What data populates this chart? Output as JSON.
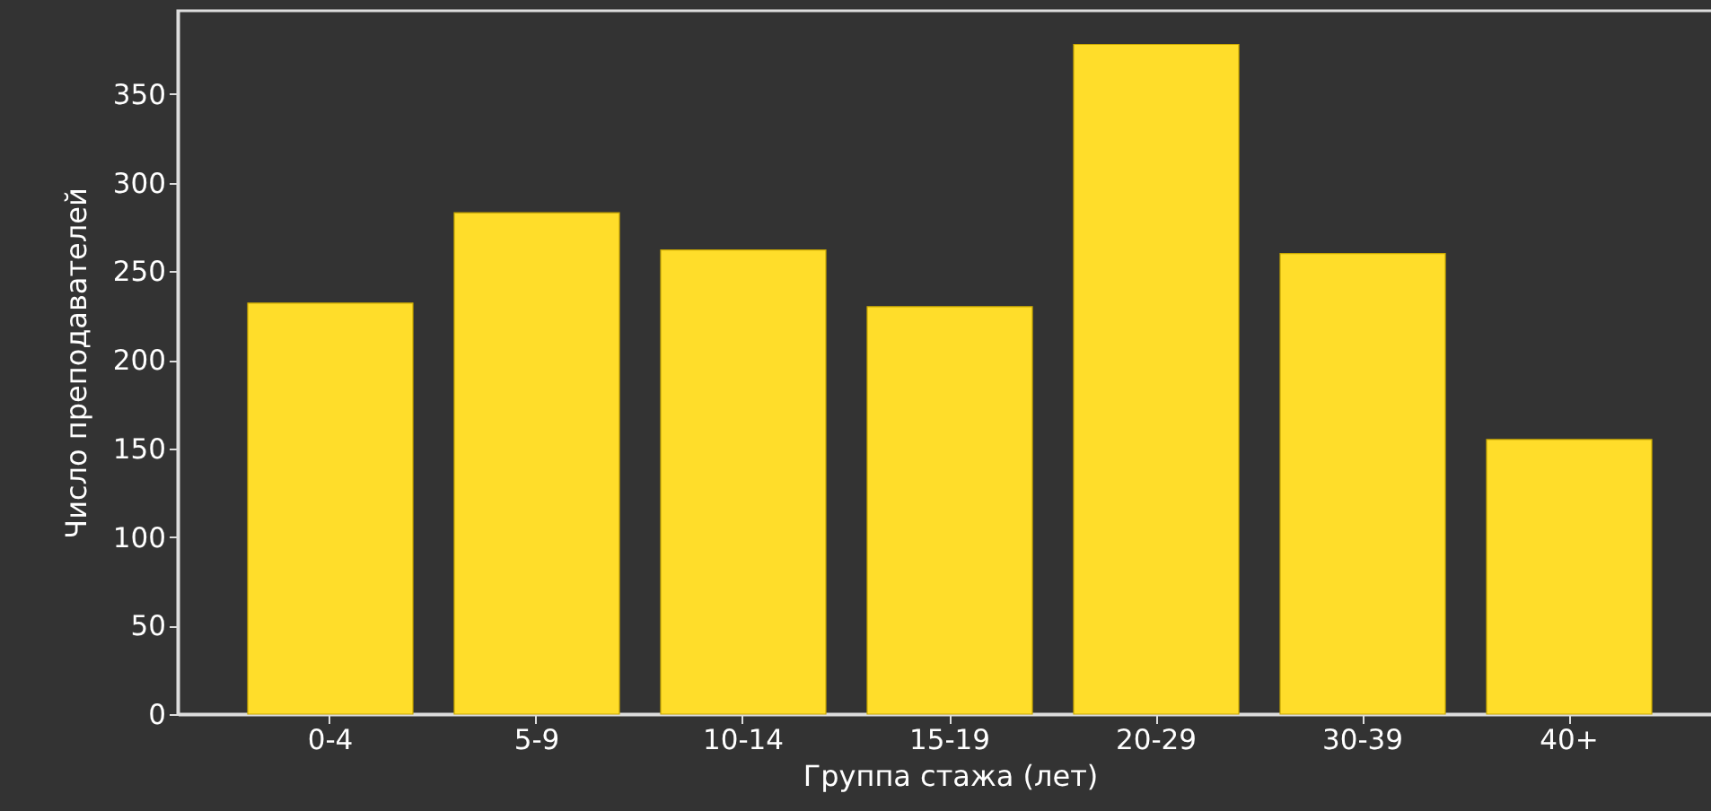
{
  "chart_data": {
    "type": "bar",
    "xlabel": "Группа стажа (лет)",
    "ylabel": "Число преподавателей",
    "categories": [
      "0-4",
      "5-9",
      "10-14",
      "15-19",
      "20-29",
      "30-39",
      "40+"
    ],
    "values": [
      232,
      283,
      262,
      230,
      378,
      260,
      155
    ],
    "color": "#ffdd2a",
    "ylim": [
      0,
      397
    ],
    "yticks": [
      0,
      50,
      100,
      150,
      200,
      250,
      300,
      350
    ],
    "grid": false
  }
}
